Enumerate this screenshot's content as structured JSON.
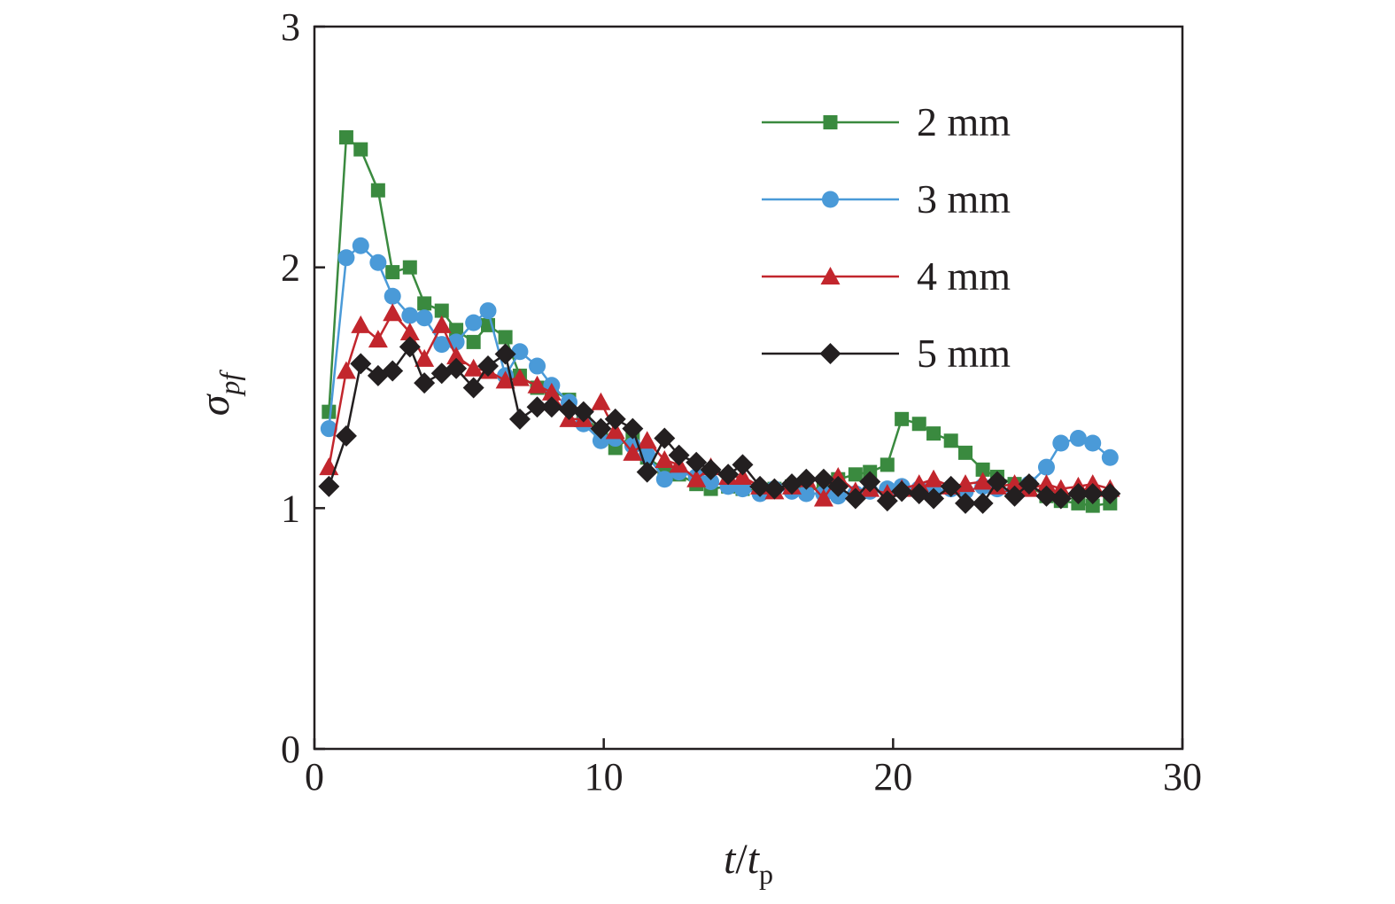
{
  "chart_data": {
    "type": "line",
    "xlabel": {
      "main": "t",
      "sep": "/",
      "base": "t",
      "sub": "p"
    },
    "ylabel": {
      "main": "σ",
      "sub": "pf"
    },
    "xlim": [
      0,
      30
    ],
    "ylim": [
      0,
      3
    ],
    "xticks": [
      0,
      10,
      20,
      30
    ],
    "yticks": [
      0,
      1,
      2,
      3
    ],
    "grid": false,
    "legend_position": "top-right",
    "series": [
      {
        "name": "2 mm",
        "color": "#3a8a3f",
        "marker": "square",
        "x": [
          0.5,
          1.1,
          1.6,
          2.2,
          2.7,
          3.3,
          3.8,
          4.4,
          4.9,
          5.5,
          6.0,
          6.6,
          7.1,
          7.7,
          8.2,
          8.8,
          9.3,
          9.9,
          10.4,
          11.0,
          11.5,
          12.1,
          12.6,
          13.2,
          13.7,
          14.3,
          14.8,
          15.4,
          15.9,
          16.5,
          17.0,
          17.6,
          18.1,
          18.7,
          19.2,
          19.8,
          20.3,
          20.9,
          21.4,
          22.0,
          22.5,
          23.1,
          23.6,
          24.2,
          24.7,
          25.3,
          25.8,
          26.4,
          26.9,
          27.5
        ],
        "y": [
          1.4,
          2.54,
          2.49,
          2.32,
          1.98,
          2.0,
          1.85,
          1.82,
          1.74,
          1.69,
          1.76,
          1.71,
          1.55,
          1.5,
          1.49,
          1.45,
          1.38,
          1.32,
          1.25,
          1.3,
          1.21,
          1.16,
          1.14,
          1.1,
          1.08,
          1.09,
          1.08,
          1.07,
          1.08,
          1.09,
          1.07,
          1.09,
          1.12,
          1.14,
          1.15,
          1.18,
          1.37,
          1.35,
          1.31,
          1.28,
          1.23,
          1.16,
          1.13,
          1.1,
          1.09,
          1.05,
          1.03,
          1.02,
          1.01,
          1.02
        ]
      },
      {
        "name": "3 mm",
        "color": "#4a9ad8",
        "marker": "circle",
        "x": [
          0.5,
          1.1,
          1.6,
          2.2,
          2.7,
          3.3,
          3.8,
          4.4,
          4.9,
          5.5,
          6.0,
          6.6,
          7.1,
          7.7,
          8.2,
          8.8,
          9.3,
          9.9,
          10.4,
          11.0,
          11.5,
          12.1,
          12.6,
          13.2,
          13.7,
          14.3,
          14.8,
          15.4,
          15.9,
          16.5,
          17.0,
          17.6,
          18.1,
          18.7,
          19.2,
          19.8,
          20.3,
          20.9,
          21.4,
          22.0,
          22.5,
          23.1,
          23.6,
          24.2,
          24.7,
          25.3,
          25.8,
          26.4,
          26.9,
          27.5
        ],
        "y": [
          1.33,
          2.04,
          2.09,
          2.02,
          1.88,
          1.8,
          1.79,
          1.68,
          1.69,
          1.77,
          1.82,
          1.55,
          1.65,
          1.59,
          1.51,
          1.44,
          1.35,
          1.28,
          1.29,
          1.26,
          1.22,
          1.12,
          1.15,
          1.13,
          1.11,
          1.09,
          1.08,
          1.06,
          1.08,
          1.07,
          1.06,
          1.06,
          1.05,
          1.06,
          1.07,
          1.08,
          1.09,
          1.08,
          1.07,
          1.08,
          1.07,
          1.09,
          1.08,
          1.07,
          1.1,
          1.17,
          1.27,
          1.29,
          1.27,
          1.21
        ]
      },
      {
        "name": "4 mm",
        "color": "#c2262d",
        "marker": "triangle",
        "x": [
          0.5,
          1.1,
          1.6,
          2.2,
          2.7,
          3.3,
          3.8,
          4.4,
          4.9,
          5.5,
          6.0,
          6.6,
          7.1,
          7.7,
          8.2,
          8.8,
          9.3,
          9.9,
          10.4,
          11.0,
          11.5,
          12.1,
          12.6,
          13.2,
          13.7,
          14.3,
          14.8,
          15.4,
          15.9,
          16.5,
          17.0,
          17.6,
          18.1,
          18.7,
          19.2,
          19.8,
          20.3,
          20.9,
          21.4,
          22.0,
          22.5,
          23.1,
          23.6,
          24.2,
          24.7,
          25.3,
          25.8,
          26.4,
          26.9,
          27.5
        ],
        "y": [
          1.17,
          1.57,
          1.76,
          1.7,
          1.81,
          1.73,
          1.62,
          1.76,
          1.63,
          1.58,
          1.57,
          1.53,
          1.54,
          1.51,
          1.48,
          1.37,
          1.37,
          1.44,
          1.32,
          1.23,
          1.28,
          1.2,
          1.18,
          1.12,
          1.17,
          1.13,
          1.13,
          1.09,
          1.07,
          1.09,
          1.12,
          1.04,
          1.13,
          1.07,
          1.08,
          1.06,
          1.08,
          1.1,
          1.12,
          1.09,
          1.1,
          1.11,
          1.09,
          1.1,
          1.08,
          1.1,
          1.08,
          1.09,
          1.1,
          1.08
        ]
      },
      {
        "name": "5 mm",
        "color": "#231f20",
        "marker": "diamond",
        "x": [
          0.5,
          1.1,
          1.6,
          2.2,
          2.7,
          3.3,
          3.8,
          4.4,
          4.9,
          5.5,
          6.0,
          6.6,
          7.1,
          7.7,
          8.2,
          8.8,
          9.3,
          9.9,
          10.4,
          11.0,
          11.5,
          12.1,
          12.6,
          13.2,
          13.7,
          14.3,
          14.8,
          15.4,
          15.9,
          16.5,
          17.0,
          17.6,
          18.1,
          18.7,
          19.2,
          19.8,
          20.3,
          20.9,
          21.4,
          22.0,
          22.5,
          23.1,
          23.6,
          24.2,
          24.7,
          25.3,
          25.8,
          26.4,
          26.9,
          27.5
        ],
        "y": [
          1.09,
          1.3,
          1.6,
          1.55,
          1.57,
          1.67,
          1.52,
          1.56,
          1.58,
          1.5,
          1.59,
          1.64,
          1.37,
          1.42,
          1.42,
          1.41,
          1.4,
          1.33,
          1.37,
          1.33,
          1.15,
          1.29,
          1.22,
          1.19,
          1.16,
          1.14,
          1.18,
          1.09,
          1.08,
          1.1,
          1.12,
          1.12,
          1.09,
          1.04,
          1.11,
          1.03,
          1.07,
          1.06,
          1.04,
          1.09,
          1.02,
          1.02,
          1.11,
          1.05,
          1.1,
          1.05,
          1.04,
          1.06,
          1.06,
          1.06
        ]
      }
    ]
  }
}
